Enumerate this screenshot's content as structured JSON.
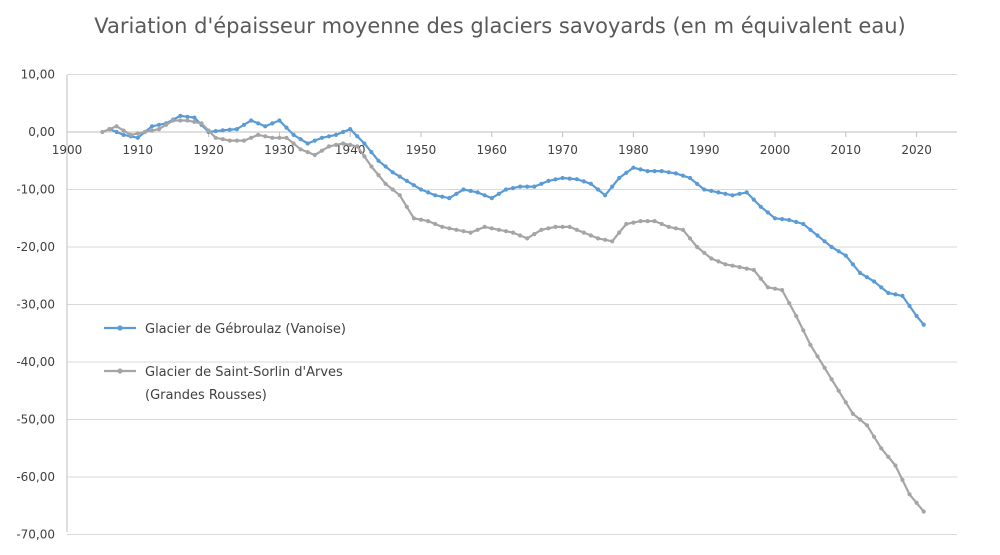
{
  "chart_data": {
    "type": "line",
    "title": "Variation d'épaisseur moyenne des glaciers savoyards (en m équivalent eau)",
    "xlabel": "",
    "ylabel": "",
    "xlim": [
      1900,
      2026
    ],
    "ylim": [
      -70,
      10
    ],
    "grid": true,
    "legend_position": "left",
    "x_ticks": [
      {
        "value": 1900,
        "label": "1900"
      },
      {
        "value": 1910,
        "label": "1910"
      },
      {
        "value": 1920,
        "label": "1920"
      },
      {
        "value": 1930,
        "label": "1930"
      },
      {
        "value": 1940,
        "label": "1940"
      },
      {
        "value": 1950,
        "label": "1950"
      },
      {
        "value": 1960,
        "label": "1960"
      },
      {
        "value": 1970,
        "label": "1970"
      },
      {
        "value": 1980,
        "label": "1980"
      },
      {
        "value": 1990,
        "label": "1990"
      },
      {
        "value": 2000,
        "label": "2000"
      },
      {
        "value": 2010,
        "label": "2010"
      },
      {
        "value": 2020,
        "label": "2020"
      }
    ],
    "y_ticks": [
      {
        "value": 10,
        "label": "10,00"
      },
      {
        "value": 0,
        "label": "0,00"
      },
      {
        "value": -10,
        "label": "-10,00"
      },
      {
        "value": -20,
        "label": "-20,00"
      },
      {
        "value": -30,
        "label": "-30,00"
      },
      {
        "value": -40,
        "label": "-40,00"
      },
      {
        "value": -50,
        "label": "-50,00"
      },
      {
        "value": -60,
        "label": "-60,00"
      },
      {
        "value": -70,
        "label": "-70,00"
      }
    ],
    "series": [
      {
        "name": "Glacier de Gébroulaz (Vanoise)",
        "legend_lines": [
          "Glacier de Gébroulaz (Vanoise)"
        ],
        "color": "#5B9BD5",
        "x": [
          1906,
          1908,
          1910,
          1912,
          1914,
          1916,
          1918,
          1920,
          1922,
          1924,
          1926,
          1928,
          1930,
          1932,
          1934,
          1936,
          1938,
          1940,
          1942,
          1944,
          1946,
          1948,
          1950,
          1952,
          1954,
          1956,
          1958,
          1960,
          1962,
          1964,
          1966,
          1968,
          1970,
          1972,
          1974,
          1976,
          1978,
          1980,
          1982,
          1984,
          1986,
          1988,
          1990,
          1992,
          1994,
          1996,
          1998,
          2000,
          2002,
          2004,
          2006,
          2008,
          2010,
          2012,
          2014,
          2016,
          2018,
          2020,
          2021
        ],
        "y": [
          0.5,
          -0.5,
          -1,
          1,
          1.5,
          2.8,
          2.5,
          0,
          0.3,
          0.5,
          2,
          1,
          2,
          -0.5,
          -2,
          -1,
          -0.5,
          0.5,
          -2,
          -5,
          -7,
          -8.5,
          -10,
          -11,
          -11.5,
          -10,
          -10.5,
          -11.5,
          -10,
          -9.5,
          -9.5,
          -8.5,
          -8,
          -8.2,
          -9,
          -11,
          -8,
          -6.2,
          -6.8,
          -6.8,
          -7.2,
          -8,
          -10,
          -10.5,
          -11,
          -10.5,
          -13,
          -15,
          -15.3,
          -16,
          -18,
          -20,
          -21.5,
          -24.5,
          -26,
          -28,
          -28.5,
          -32,
          -33.5
        ]
      },
      {
        "name": "Glacier de Saint-Sorlin d'Arves (Grandes Rousses)",
        "legend_lines": [
          "Glacier de Saint-Sorlin d'Arves",
          "(Grandes Rousses)"
        ],
        "color": "#A5A5A5",
        "x": [
          1905,
          1907,
          1909,
          1911,
          1913,
          1915,
          1917,
          1919,
          1921,
          1923,
          1925,
          1927,
          1929,
          1931,
          1933,
          1935,
          1937,
          1939,
          1941,
          1943,
          1945,
          1947,
          1949,
          1951,
          1953,
          1955,
          1957,
          1959,
          1961,
          1963,
          1965,
          1967,
          1969,
          1971,
          1973,
          1975,
          1977,
          1979,
          1981,
          1983,
          1985,
          1987,
          1989,
          1991,
          1993,
          1995,
          1997,
          1999,
          2001,
          2003,
          2005,
          2007,
          2009,
          2011,
          2013,
          2015,
          2017,
          2019,
          2021
        ],
        "y": [
          0,
          1,
          -0.5,
          0,
          0.5,
          2,
          2,
          1.5,
          -1,
          -1.5,
          -1.5,
          -0.5,
          -1,
          -1,
          -3,
          -4,
          -2.5,
          -2,
          -2.5,
          -6,
          -9,
          -11,
          -15,
          -15.5,
          -16.5,
          -17,
          -17.5,
          -16.5,
          -17,
          -17.5,
          -18.5,
          -17,
          -16.5,
          -16.5,
          -17.5,
          -18.5,
          -19,
          -16,
          -15.5,
          -15.5,
          -16.5,
          -17,
          -20,
          -22,
          -23,
          -23.5,
          -24,
          -27,
          -27.5,
          -32,
          -37,
          -41,
          -45,
          -49,
          -51,
          -55,
          -58,
          -63,
          -66
        ]
      }
    ]
  }
}
